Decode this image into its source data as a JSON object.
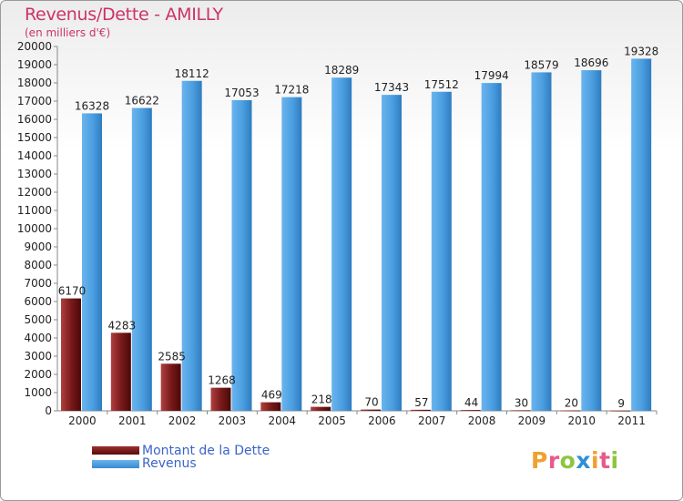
{
  "title": "Revenus/Dette - AMILLY",
  "subtitle": "(en milliers d'€)",
  "brand_letters": [
    {
      "ch": "P",
      "color": "#f0a030"
    },
    {
      "ch": "r",
      "color": "#e85a8a"
    },
    {
      "ch": "o",
      "color": "#8cc63f"
    },
    {
      "ch": "x",
      "color": "#2f8fd8"
    },
    {
      "ch": "i",
      "color": "#f0a030"
    },
    {
      "ch": "t",
      "color": "#e85a8a"
    },
    {
      "ch": "i",
      "color": "#8cc63f"
    }
  ],
  "chart_data": {
    "type": "bar",
    "title": "Revenus/Dette - AMILLY",
    "subtitle": "(en milliers d'€)",
    "categories": [
      "2000",
      "2001",
      "2002",
      "2003",
      "2004",
      "2005",
      "2006",
      "2007",
      "2008",
      "2009",
      "2010",
      "2011"
    ],
    "series": [
      {
        "name": "Montant de la Dette",
        "color": "#7a1a1a",
        "values": [
          6170,
          4283,
          2585,
          1268,
          469,
          218,
          70,
          57,
          44,
          30,
          20,
          9
        ]
      },
      {
        "name": "Revenus",
        "color": "#4a9ee0",
        "values": [
          16328,
          16622,
          18112,
          17053,
          17218,
          18289,
          17343,
          17512,
          17994,
          18579,
          18696,
          19328
        ]
      }
    ],
    "ylim": [
      0,
      20000
    ],
    "ytick_step": 1000,
    "grid": false,
    "legend_position": "bottom-left"
  }
}
